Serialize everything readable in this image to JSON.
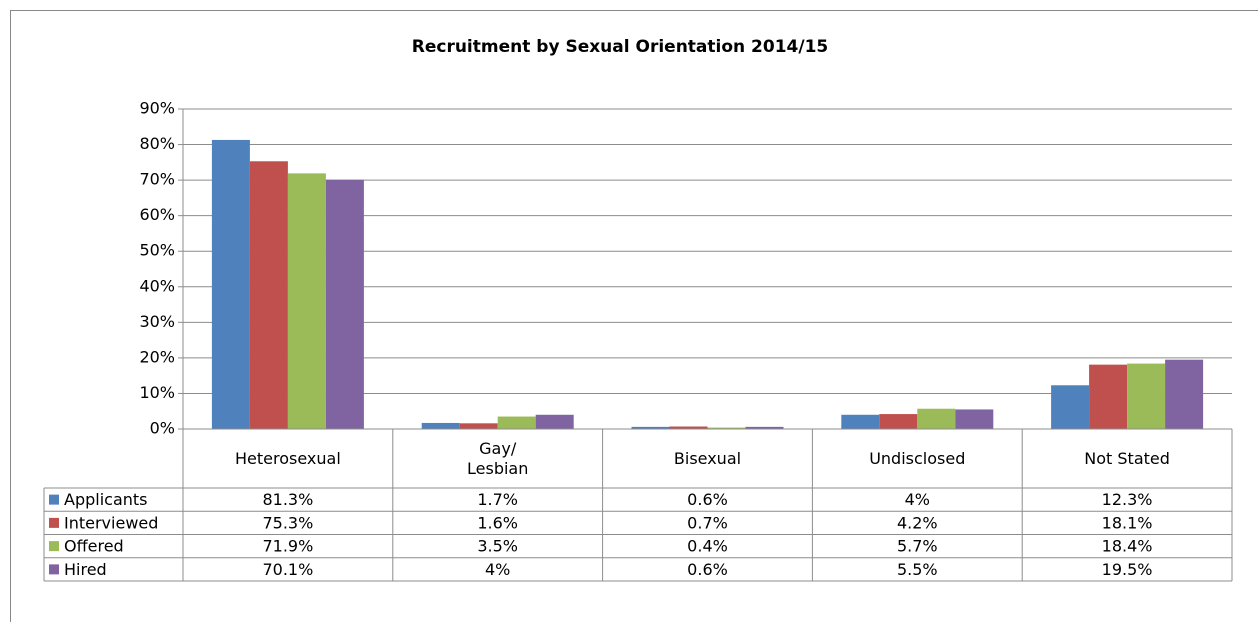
{
  "chart_data": {
    "type": "bar",
    "title": "Recruitment by Sexual Orientation 2014/15",
    "categories": [
      "Heterosexual",
      "Gay/\nLesbian",
      "Bisexual",
      "Undisclosed",
      "Not Stated"
    ],
    "series": [
      {
        "name": "Applicants",
        "color": "#4f81bd",
        "values": [
          81.3,
          1.7,
          0.6,
          4,
          12.3
        ],
        "value_labels": [
          "81.3%",
          "1.7%",
          "0.6%",
          "4%",
          "12.3%"
        ]
      },
      {
        "name": "Interviewed",
        "color": "#c0504d",
        "values": [
          75.3,
          1.6,
          0.7,
          4.2,
          18.1
        ],
        "value_labels": [
          "75.3%",
          "1.6%",
          "0.7%",
          "4.2%",
          "18.1%"
        ]
      },
      {
        "name": "Offered",
        "color": "#9bbb59",
        "values": [
          71.9,
          3.5,
          0.4,
          5.7,
          18.4
        ],
        "value_labels": [
          "71.9%",
          "3.5%",
          "0.4%",
          "5.7%",
          "18.4%"
        ]
      },
      {
        "name": "Hired",
        "color": "#8064a2",
        "values": [
          70.1,
          4,
          0.6,
          5.5,
          19.5
        ],
        "value_labels": [
          "70.1%",
          "4%",
          "0.6%",
          "5.5%",
          "19.5%"
        ]
      }
    ],
    "ylim": [
      0,
      90
    ],
    "yticks": [
      {
        "value": 0,
        "label": "0%"
      },
      {
        "value": 10,
        "label": "10%"
      },
      {
        "value": 20,
        "label": "20%"
      },
      {
        "value": 30,
        "label": "30%"
      },
      {
        "value": 40,
        "label": "40%"
      },
      {
        "value": 50,
        "label": "50%"
      },
      {
        "value": 60,
        "label": "60%"
      },
      {
        "value": 70,
        "label": "70%"
      },
      {
        "value": 80,
        "label": "80%"
      },
      {
        "value": 90,
        "label": "90%"
      }
    ],
    "grid": true
  }
}
